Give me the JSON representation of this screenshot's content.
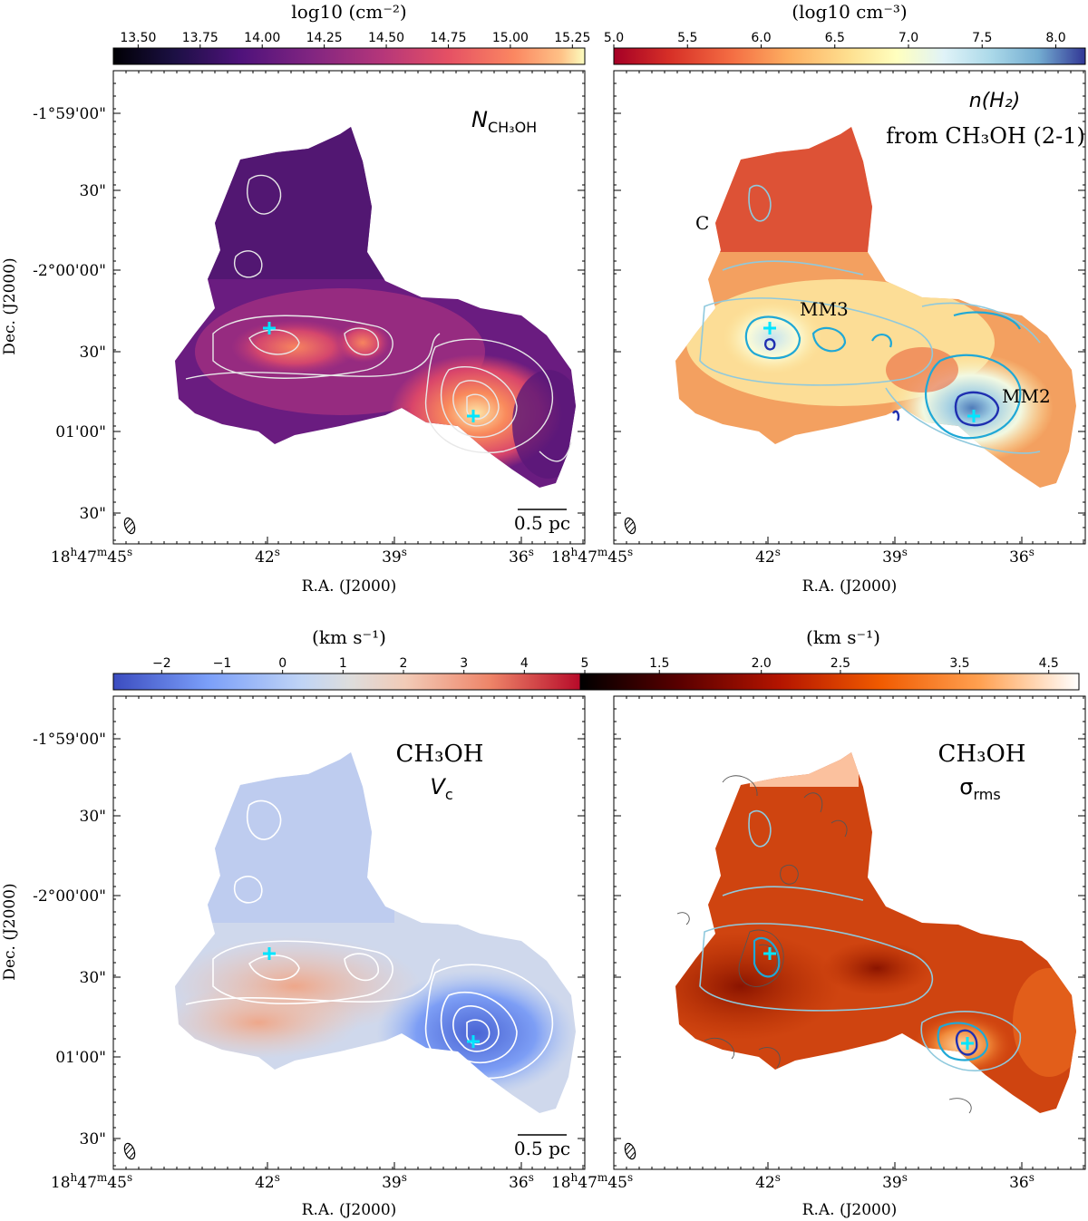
{
  "chart_data": [
    {
      "type": "heatmap",
      "panel": "top-left",
      "quantity": "CH3OH column density",
      "label_main": "N",
      "label_sub": "CH₃OH",
      "colorbar": {
        "title": "log10 (cm⁻²)",
        "cmap": "magma",
        "ticks": [
          "13.50",
          "13.75",
          "14.00",
          "14.25",
          "14.50",
          "14.75",
          "15.00",
          "15.25"
        ],
        "range": [
          13.4,
          15.3
        ]
      },
      "xlabel": "R.A. (J2000)",
      "ylabel": "Dec. (J2000)",
      "scalebar": "0.5 pc",
      "contour_color": "#e8e8e8",
      "markers": [
        {
          "name": "MM3",
          "ra_s": 41.8,
          "dec_s": 24
        },
        {
          "name": "MM2",
          "ra_s": 36.7,
          "dec_s": 52
        }
      ]
    },
    {
      "type": "heatmap",
      "panel": "top-right",
      "quantity": "H2 volume density",
      "label_line1": "n(H₂)",
      "label_line2": "from CH₃OH (2-1)",
      "colorbar": {
        "title": "(log10 cm⁻³)",
        "cmap": "RdYlBu_r",
        "ticks": [
          "5.0",
          "5.5",
          "6.0",
          "6.5",
          "7.0",
          "7.5",
          "8.0"
        ],
        "range": [
          5.0,
          8.2
        ]
      },
      "xlabel": "R.A. (J2000)",
      "scalebar": "",
      "annotations": [
        "C",
        "MM3",
        "MM2"
      ],
      "contour_colors": [
        "#8fc9dd",
        "#1fa8d6",
        "#1f2fb0"
      ],
      "markers": [
        {
          "name": "MM3",
          "ra_s": 41.8,
          "dec_s": 24
        },
        {
          "name": "MM2",
          "ra_s": 36.7,
          "dec_s": 52
        }
      ]
    },
    {
      "type": "heatmap",
      "panel": "bottom-left",
      "quantity": "CH3OH centroid velocity",
      "label_line1": "CH₃OH",
      "label_line2": "V",
      "label_sub": "c",
      "colorbar": {
        "title": "(km s⁻¹)",
        "cmap": "coolwarm",
        "ticks": [
          "−2",
          "−1",
          "0",
          "1",
          "2",
          "3",
          "4",
          "5"
        ],
        "range": [
          -2.8,
          5.0
        ]
      },
      "xlabel": "R.A. (J2000)",
      "ylabel": "Dec. (J2000)",
      "scalebar": "0.5 pc",
      "contour_color": "#ffffff",
      "markers": [
        {
          "name": "MM3",
          "ra_s": 41.8,
          "dec_s": 24
        },
        {
          "name": "MM2",
          "ra_s": 36.7,
          "dec_s": 52
        }
      ]
    },
    {
      "type": "heatmap",
      "panel": "bottom-right",
      "quantity": "CH3OH velocity dispersion",
      "label_line1": "CH₃OH",
      "label_line2": "σ",
      "label_sub": "rms",
      "colorbar": {
        "title": "(km s⁻¹)",
        "cmap": "gist_heat",
        "scale": "log",
        "ticks": [
          "1.5",
          "2.0",
          "2.5",
          "3.5",
          "4.5"
        ],
        "range": [
          1.2,
          4.9
        ]
      },
      "xlabel": "R.A. (J2000)",
      "scalebar": "",
      "contour_colors": [
        "#8fc9dd",
        "#1fa8d6",
        "#1f2fb0",
        "#555555"
      ],
      "markers": [
        {
          "name": "MM3",
          "ra_s": 41.8,
          "dec_s": 24
        },
        {
          "name": "MM2",
          "ra_s": 36.7,
          "dec_s": 52
        }
      ]
    }
  ],
  "axes": {
    "ra_ticks": [
      {
        "base": "18",
        "sup1": "h",
        "mid": "47",
        "sup2": "m",
        "sec": "45",
        "sup3": "s"
      },
      {
        "sec": "42",
        "sup3": "s"
      },
      {
        "sec": "39",
        "sup3": "s"
      },
      {
        "sec": "36",
        "sup3": "s"
      }
    ],
    "dec_ticks": [
      "-1°59'00\"",
      "30\"",
      "-2°00'00\"",
      "30\"",
      "01'00\"",
      "30\""
    ]
  },
  "marker_color": "#00e5ff"
}
